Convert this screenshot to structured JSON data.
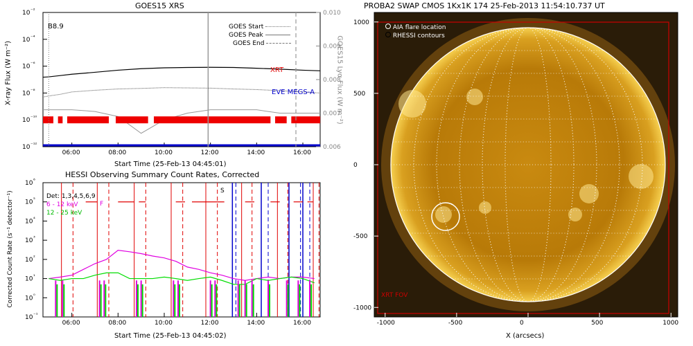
{
  "goes": {
    "title": "GOES15 XRS",
    "ylabel": "X-ray Flux (W m⁻²)",
    "y2label": "GOES15 Lyα Flux (W m⁻²)",
    "xlabel": "Start Time (25-Feb-13 04:45:01)",
    "class_label": "B8.9",
    "legend": [
      {
        "label": "GOES Start",
        "style": "dotted",
        "color": "#777777"
      },
      {
        "label": "GOES Peak",
        "style": "solid",
        "color": "#777777"
      },
      {
        "label": "GOES End",
        "style": "dashed",
        "color": "#777777"
      }
    ],
    "annotations": [
      {
        "text": "XRT",
        "color": "#e00000"
      },
      {
        "text": "EVE MEGS-A",
        "color": "#0000cc"
      }
    ]
  },
  "hessi": {
    "title": "HESSI Observing Summary Count Rates, Corrected",
    "ylabel": "Corrected Count Rate (s⁻¹ detector⁻¹)",
    "xlabel": "Start Time (25-Feb-13 04:45:02)",
    "legend": [
      {
        "label": "Det: 1,3,4,5,6,9",
        "color": "#000000"
      },
      {
        "label": "6 - 12 keV",
        "color": "#e000e0"
      },
      {
        "label": "12 - 25 keV",
        "color": "#00dd00"
      }
    ],
    "marker_S": "S",
    "marker_F": "F"
  },
  "swap": {
    "title": "PROBA2 SWAP CMOS 1Kx1K 174 25-Feb-2013 11:54:10.737 UT",
    "xlabel": "X (arcsecs)",
    "legend": [
      {
        "label": "AIA flare location"
      },
      {
        "label": "RHESSI contours"
      }
    ],
    "fov_label": "XRT FOV",
    "xticks": [
      "-1000",
      "-500",
      "0",
      "500",
      "1000"
    ],
    "yticks": [
      "1000",
      "500",
      "0",
      "-500",
      "-1000"
    ]
  },
  "chart_data": [
    {
      "type": "line",
      "title": "GOES15 XRS",
      "xlabel": "Start Time (25-Feb-13 04:45:01)",
      "ylabel": "X-ray Flux (W m⁻²)",
      "y2label": "GOES15 Lyα Flux (W m⁻²)",
      "ylog": true,
      "ylim": [
        1e-12,
        0.01
      ],
      "y2lim": [
        0.006,
        0.01
      ],
      "xlim": [
        4.75,
        16.75
      ],
      "xticks": [
        "06:00",
        "08:00",
        "10:00",
        "12:00",
        "14:00",
        "16:00"
      ],
      "yticks": [
        "10⁻¹²",
        "10⁻¹⁰",
        "10⁻⁸",
        "10⁻⁶",
        "10⁻⁴",
        "10⁻²"
      ],
      "y2ticks": [
        "0.006",
        "0.007",
        "0.008",
        "0.009",
        "0.010"
      ],
      "x": [
        4.75,
        5.0,
        5.5,
        6.0,
        7.0,
        8.0,
        9.0,
        10.0,
        11.0,
        12.0,
        13.0,
        14.0,
        15.0,
        16.0,
        16.75
      ],
      "series": [
        {
          "name": "XRT",
          "values": [
            1.5e-07,
            1.6e-07,
            2e-07,
            2.5e-07,
            3.5e-07,
            5e-07,
            6.5e-07,
            7.5e-07,
            8e-07,
            8.2e-07,
            8e-07,
            7e-07,
            6e-07,
            5e-07,
            4.5e-07
          ],
          "color": "#000000"
        },
        {
          "name": "EVE MEGS-A",
          "values": [
            5e-09,
            6e-09,
            8e-09,
            1.2e-08,
            1.6e-08,
            2e-08,
            2.2e-08,
            2.5e-08,
            2.4e-08,
            2.3e-08,
            2e-08,
            1.8e-08,
            1.5e-08,
            1.2e-08,
            1e-08
          ],
          "color": "#555555"
        },
        {
          "values": [
            0.0071,
            0.0071,
            0.0071,
            0.0071,
            0.00705,
            0.0069,
            0.0064,
            0.0068,
            0.007,
            0.0071,
            0.0071,
            0.0071,
            0.007,
            0.007,
            0.007
          ],
          "color": "#999999",
          "axis": "y2"
        }
      ],
      "xrt_intervals": [
        [
          4.75,
          5.2
        ],
        [
          5.4,
          5.6
        ],
        [
          5.8,
          7.6
        ],
        [
          7.9,
          9.3
        ],
        [
          9.55,
          14.6
        ],
        [
          14.8,
          15.3
        ],
        [
          15.5,
          16.75
        ]
      ],
      "eve_level": 1e-12,
      "goes_peak": 11.9,
      "goes_end": 15.7,
      "goes_start": 5.0
    },
    {
      "type": "line",
      "title": "HESSI Observing Summary Count Rates, Corrected",
      "xlabel": "Start Time (25-Feb-13 04:45:02)",
      "ylabel": "Corrected Count Rate (s⁻¹ detector⁻¹)",
      "ylog": true,
      "ylim": [
        0.1,
        1000000.0
      ],
      "xlim": [
        4.75,
        16.75
      ],
      "xticks": [
        "06:00",
        "08:00",
        "10:00",
        "12:00",
        "14:00",
        "16:00"
      ],
      "yticks": [
        "10⁻¹",
        "10⁰",
        "10¹",
        "10²",
        "10³",
        "10⁴",
        "10⁵",
        "10⁶"
      ],
      "x": [
        5.0,
        5.5,
        6.0,
        6.5,
        7.0,
        7.5,
        8.0,
        8.5,
        9.0,
        9.5,
        10.0,
        10.5,
        11.0,
        11.5,
        12.0,
        12.5,
        13.0,
        13.5,
        14.0,
        14.5,
        15.0,
        15.5,
        16.0,
        16.5
      ],
      "series": [
        {
          "name": "6 - 12 keV",
          "values": [
            10,
            12,
            15,
            30,
            60,
            100,
            300,
            250,
            200,
            150,
            120,
            80,
            40,
            30,
            20,
            15,
            10,
            8,
            10,
            12,
            10,
            12,
            12,
            10
          ],
          "color": "#e000e0"
        },
        {
          "name": "12 - 25 keV",
          "values": [
            10,
            8,
            10,
            10,
            15,
            20,
            20,
            10,
            10,
            10,
            12,
            10,
            8,
            10,
            12,
            8,
            5,
            5,
            10,
            8,
            10,
            12,
            10,
            6
          ],
          "color": "#00dd00"
        }
      ],
      "night_red": [
        [
          5.55,
          6.05
        ],
        [
          7.1,
          7.6
        ],
        [
          8.7,
          9.2
        ],
        [
          10.3,
          10.8
        ],
        [
          11.8,
          12.3
        ],
        [
          13.35,
          13.8
        ],
        [
          14.9,
          15.35
        ],
        [
          16.45,
          16.7
        ]
      ],
      "saa_blue": [
        [
          12.95,
          13.1
        ],
        [
          14.2,
          14.5
        ],
        [
          15.4,
          15.9
        ],
        [
          16.0,
          16.3
        ]
      ],
      "attenuator_level": 100000.0
    }
  ]
}
